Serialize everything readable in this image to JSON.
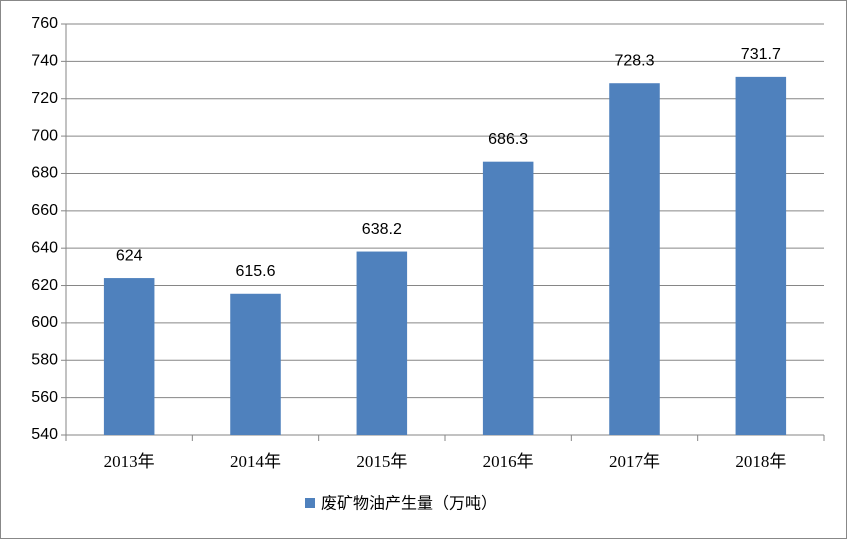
{
  "chart_data": {
    "type": "bar",
    "categories": [
      "2013年",
      "2014年",
      "2015年",
      "2016年",
      "2017年",
      "2018年"
    ],
    "series": [
      {
        "name": "废矿物油产生量（万吨）",
        "color": "#4f81bd",
        "values": [
          624,
          615.6,
          638.2,
          686.3,
          728.3,
          731.7
        ]
      }
    ],
    "ylim": [
      540,
      760
    ],
    "yticks": [
      540,
      560,
      580,
      600,
      620,
      640,
      660,
      680,
      700,
      720,
      740,
      760
    ],
    "grid": true,
    "legend": "bottom",
    "data_labels": true
  }
}
